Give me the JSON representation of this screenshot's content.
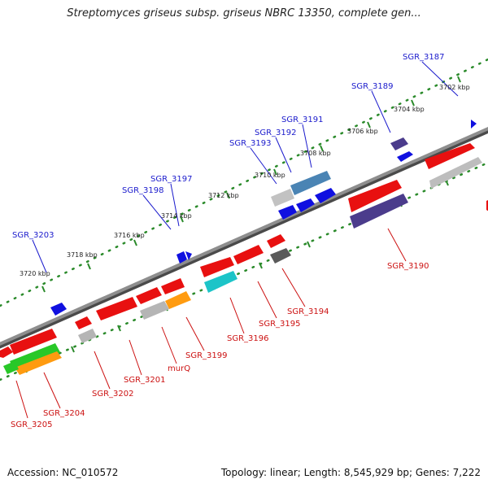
{
  "header": {
    "title": "Streptomyces griseus subsp. griseus NBRC 13350, complete gen..."
  },
  "footer": {
    "accession": "Accession: NC_010572",
    "summary": "Topology: linear; Length: 8,545,929 bp; Genes: 7,222"
  },
  "colors": {
    "backbone": "#7a7a7a",
    "tick": "#2a8a2a",
    "blue_label": "#1a1acc",
    "red_label": "#cc1111",
    "gene_red": "#e81010",
    "gene_blue": "#1010e0",
    "gene_grey": "#b5b5b5",
    "gene_darkgrey": "#5a5a5a",
    "gene_purple": "#4b3c8c",
    "gene_steel": "#4a84b4",
    "gene_cyan": "#1cc4c8",
    "gene_orange": "#ff9b10",
    "gene_green": "#28c828"
  },
  "kbp_labels": [
    "3702 kbp",
    "3704 kbp",
    "3706 kbp",
    "3708 kbp",
    "3710 kbp",
    "3712 kbp",
    "3714 kbp",
    "3716 kbp",
    "3718 kbp",
    "3720 kbp"
  ],
  "gene_labels": {
    "top": [
      "SGR_3187",
      "SGR_3189",
      "SGR_3191",
      "SGR_3192",
      "SGR_3193",
      "SGR_3197",
      "SGR_3198",
      "SGR_3203"
    ],
    "bottom": [
      "SGR_3190",
      "SGR_3194",
      "SGR_3195",
      "SGR_3196",
      "SGR_3199",
      "murQ",
      "SGR_3201",
      "SGR_3202",
      "SGR_3204",
      "SGR_3205"
    ]
  }
}
